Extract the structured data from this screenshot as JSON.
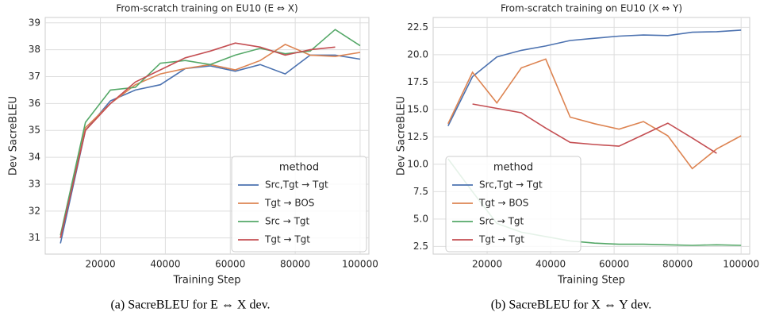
{
  "chart_data": [
    {
      "type": "line",
      "title": "From-scratch training on EU10 (E ⇔ X)",
      "caption": "(a) SacreBLEU for E ⇔ X dev.",
      "x_label": "Training Step",
      "y_label": "Dev SacreBLEU",
      "x": [
        7692,
        15385,
        23077,
        30769,
        38462,
        46154,
        53846,
        61538,
        69231,
        76923,
        84615,
        92308,
        100000
      ],
      "series": [
        {
          "name": "Src,Tgt → Tgt",
          "color": "#4c72b0",
          "values": [
            30.8,
            35.0,
            36.1,
            36.5,
            36.7,
            37.3,
            37.4,
            37.2,
            37.45,
            37.1,
            37.8,
            37.8,
            37.65
          ]
        },
        {
          "name": "Tgt → BOS",
          "color": "#dd8452",
          "values": [
            31.0,
            35.1,
            36.0,
            36.7,
            37.1,
            37.3,
            37.45,
            37.25,
            37.6,
            38.2,
            37.8,
            37.75,
            37.9
          ]
        },
        {
          "name": "Src → Tgt",
          "color": "#55a868",
          "values": [
            31.1,
            35.3,
            36.5,
            36.6,
            37.5,
            37.6,
            37.45,
            37.8,
            38.05,
            37.85,
            37.95,
            38.75,
            38.15
          ]
        },
        {
          "name": "Tgt → Tgt",
          "color": "#c44e52",
          "values": [
            31.0,
            35.0,
            36.0,
            36.8,
            37.25,
            37.7,
            37.95,
            38.25,
            38.1,
            37.8,
            38.0,
            38.1,
            null
          ]
        }
      ],
      "legend_title": "method",
      "legend": "lower right",
      "grid": true,
      "xlim": [
        3000,
        102700
      ],
      "xticks": [
        20000,
        40000,
        60000,
        80000,
        100000
      ],
      "ylim": [
        30.4,
        39.2
      ],
      "yticks": [
        31,
        32,
        33,
        34,
        35,
        36,
        37,
        38,
        39
      ]
    },
    {
      "type": "line",
      "title": "From-scratch training on EU10 (X ⇔ Y)",
      "caption": "(b) SacreBLEU for X ⇔ Y dev.",
      "x_label": "Training Step",
      "y_label": "Dev SacreBLEU",
      "x": [
        7692,
        15385,
        23077,
        30769,
        38462,
        46154,
        53846,
        61538,
        69231,
        76923,
        84615,
        92308,
        100000
      ],
      "series": [
        {
          "name": "Src,Tgt → Tgt",
          "color": "#4c72b0",
          "values": [
            13.5,
            18.0,
            19.8,
            20.4,
            20.8,
            21.3,
            21.5,
            21.7,
            21.8,
            21.75,
            22.05,
            22.1,
            22.25
          ]
        },
        {
          "name": "Tgt → BOS",
          "color": "#dd8452",
          "values": [
            13.7,
            18.4,
            15.6,
            18.8,
            19.6,
            14.3,
            13.7,
            13.2,
            13.9,
            12.6,
            9.6,
            11.4,
            12.6
          ]
        },
        {
          "name": "Src → Tgt",
          "color": "#55a868",
          "values": [
            10.5,
            7.5,
            4.6,
            3.8,
            3.4,
            3.0,
            2.8,
            2.7,
            2.7,
            2.65,
            2.6,
            2.65,
            2.6
          ]
        },
        {
          "name": "Tgt → Tgt",
          "color": "#c44e52",
          "values": [
            null,
            15.5,
            15.1,
            14.7,
            13.3,
            12.0,
            11.8,
            11.65,
            12.7,
            13.75,
            12.4,
            11.0,
            null
          ]
        }
      ],
      "legend_title": "method",
      "legend": "lower left",
      "grid": true,
      "xlim": [
        3000,
        102700
      ],
      "xticks": [
        20000,
        40000,
        60000,
        80000,
        100000
      ],
      "ylim": [
        1.8,
        23.4
      ],
      "yticks": [
        2.5,
        {
          "value": 5,
          "label": "5.0"
        },
        7.5,
        {
          "value": 10,
          "label": "10.0"
        },
        12.5,
        {
          "value": 15,
          "label": "15.0"
        },
        17.5,
        {
          "value": 20,
          "label": "20.0"
        },
        22.5
      ]
    }
  ]
}
